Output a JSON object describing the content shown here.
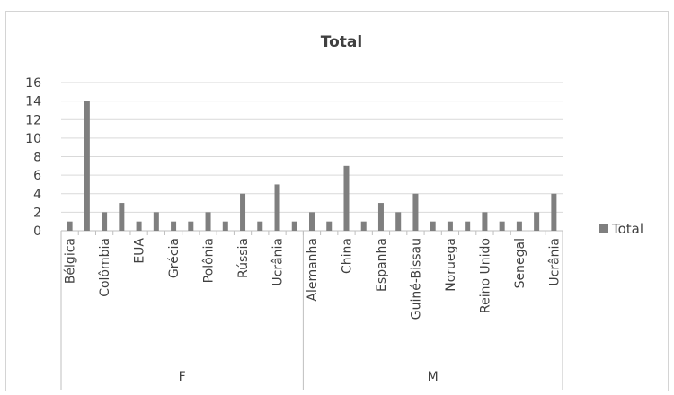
{
  "chart_data": {
    "type": "bar",
    "title": "Total",
    "xlabel": "",
    "ylabel": "",
    "ylim": [
      0,
      16
    ],
    "y_ticks": [
      0,
      2,
      4,
      6,
      8,
      10,
      12,
      14,
      16
    ],
    "grid": true,
    "legend_position": "right",
    "bar_color": "#7f7f7f",
    "series": [
      {
        "name": "Total",
        "values": [
          1,
          14,
          2,
          3,
          1,
          2,
          1,
          1,
          2,
          1,
          4,
          1,
          5,
          1,
          2,
          1,
          7,
          1,
          3,
          2,
          4,
          1,
          1,
          1,
          2,
          1,
          1,
          2,
          4
        ]
      }
    ],
    "categories": [
      "Bélgica",
      "",
      "Colômbia",
      "",
      "EUA",
      "",
      "Grécia",
      "",
      "Polônia",
      "",
      "Rússia",
      "",
      "Ucrânia",
      "",
      "Alemanha",
      "",
      "China",
      "",
      "Espanha",
      "",
      "Guiné-Bissau",
      "",
      "Noruega",
      "",
      "Reino Unido",
      "",
      "Senegal",
      "",
      "Ucrânia"
    ],
    "groups": [
      {
        "label": "F",
        "count": 14
      },
      {
        "label": "M",
        "count": 15
      }
    ]
  }
}
